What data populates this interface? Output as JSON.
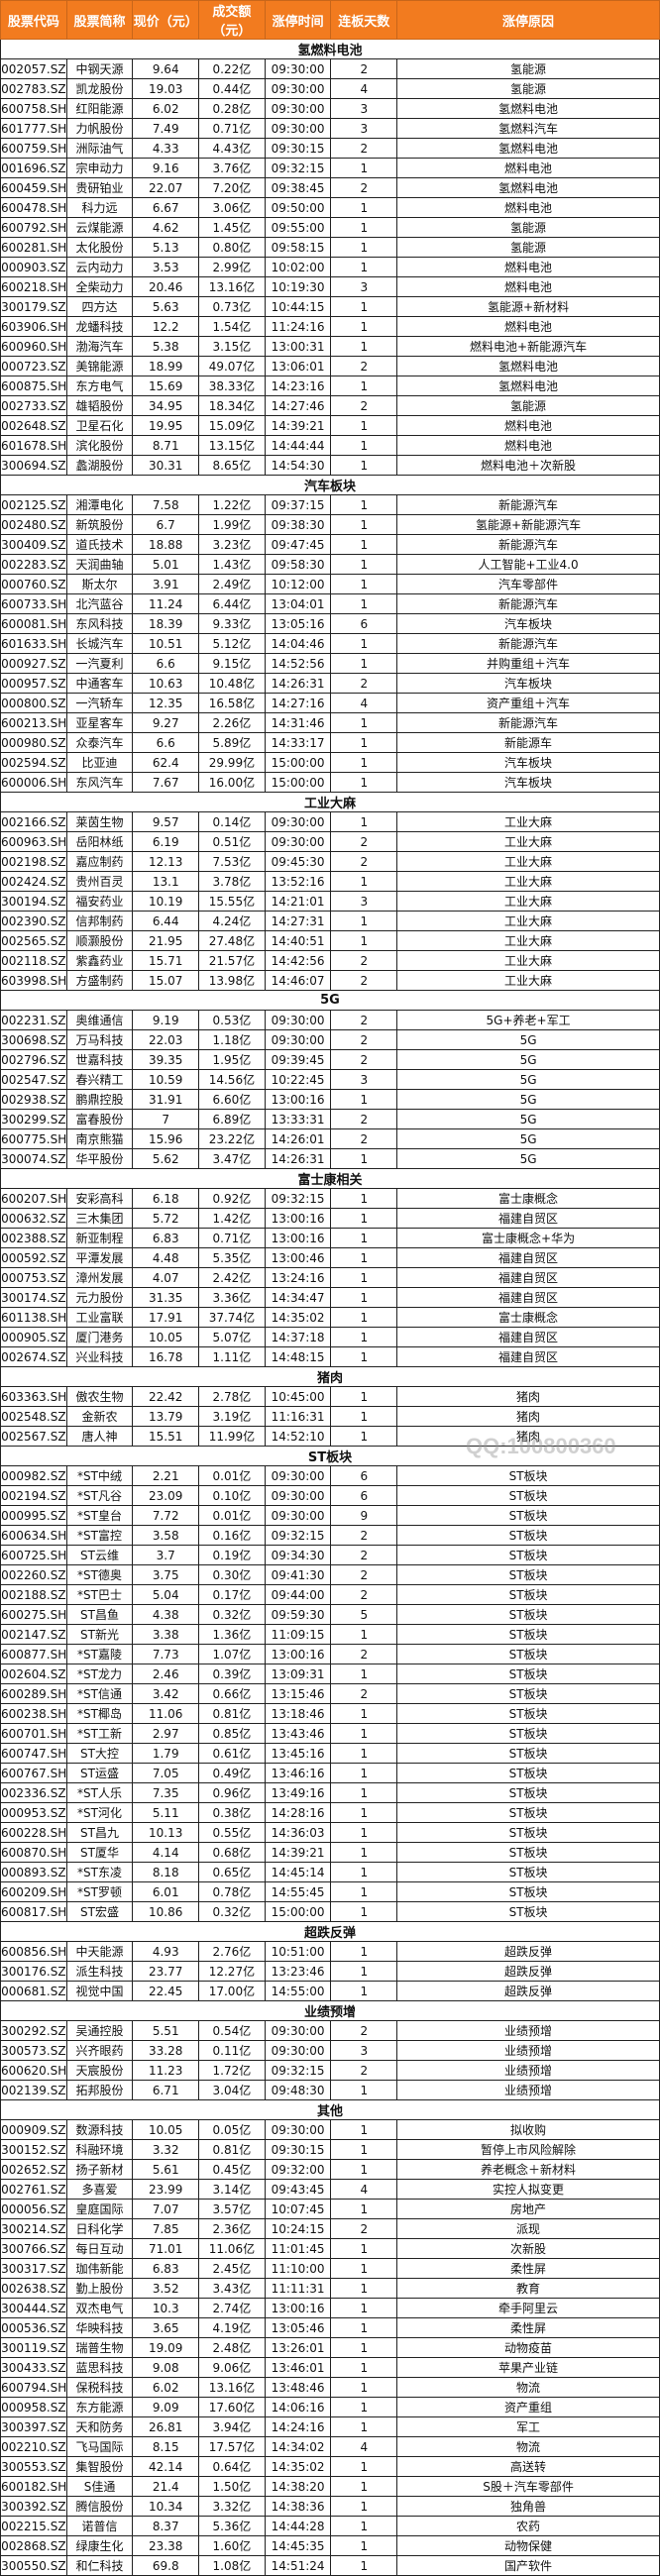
{
  "colors": {
    "header_bg": "#f27b1f",
    "header_text": "#ffffff"
  },
  "columns": [
    "股票代码",
    "股票简称",
    "现价（元）",
    "成交额（元）",
    "涨停时间",
    "连板天数",
    "涨停原因"
  ],
  "watermark": "QQ:100800360",
  "sections": [
    {
      "title": "氢燃料电池",
      "rows": [
        [
          "002057.SZ",
          "中钢天源",
          "9.64",
          "0.22亿",
          "09:30:00",
          "2",
          "氢能源"
        ],
        [
          "002783.SZ",
          "凯龙股份",
          "19.03",
          "0.44亿",
          "09:30:00",
          "4",
          "氢能源"
        ],
        [
          "600758.SH",
          "红阳能源",
          "6.02",
          "0.28亿",
          "09:30:00",
          "3",
          "氢燃料电池"
        ],
        [
          "601777.SH",
          "力帆股份",
          "7.49",
          "0.71亿",
          "09:30:00",
          "3",
          "氢燃料汽车"
        ],
        [
          "600759.SH",
          "洲际油气",
          "4.33",
          "4.43亿",
          "09:30:15",
          "2",
          "氢燃料电池"
        ],
        [
          "001696.SZ",
          "宗申动力",
          "9.16",
          "3.76亿",
          "09:32:15",
          "1",
          "燃料电池"
        ],
        [
          "600459.SH",
          "贵研铂业",
          "22.07",
          "7.20亿",
          "09:38:45",
          "2",
          "氢燃料电池"
        ],
        [
          "600478.SH",
          "科力远",
          "6.67",
          "3.06亿",
          "09:50:00",
          "1",
          "燃料电池"
        ],
        [
          "600792.SH",
          "云煤能源",
          "4.62",
          "1.45亿",
          "09:55:00",
          "1",
          "氢能源"
        ],
        [
          "600281.SH",
          "太化股份",
          "5.13",
          "0.80亿",
          "09:58:15",
          "1",
          "氢能源"
        ],
        [
          "000903.SZ",
          "云内动力",
          "3.53",
          "2.99亿",
          "10:02:00",
          "1",
          "燃料电池"
        ],
        [
          "600218.SH",
          "全柴动力",
          "20.46",
          "13.16亿",
          "10:19:30",
          "3",
          "燃料电池"
        ],
        [
          "300179.SZ",
          "四方达",
          "5.63",
          "0.73亿",
          "10:44:15",
          "1",
          "氢能源+新材料"
        ],
        [
          "603906.SH",
          "龙蟠科技",
          "12.2",
          "1.54亿",
          "11:24:16",
          "1",
          "燃料电池"
        ],
        [
          "600960.SH",
          "渤海汽车",
          "5.38",
          "3.15亿",
          "13:00:31",
          "1",
          "燃料电池+新能源汽车"
        ],
        [
          "000723.SZ",
          "美锦能源",
          "18.99",
          "49.07亿",
          "13:06:01",
          "2",
          "氢燃料电池"
        ],
        [
          "600875.SH",
          "东方电气",
          "15.69",
          "38.33亿",
          "14:23:16",
          "1",
          "氢燃料电池"
        ],
        [
          "002733.SZ",
          "雄韬股份",
          "34.95",
          "18.34亿",
          "14:27:46",
          "2",
          "氢能源"
        ],
        [
          "002648.SZ",
          "卫星石化",
          "19.95",
          "15.09亿",
          "14:39:21",
          "1",
          "燃料电池"
        ],
        [
          "601678.SH",
          "滨化股份",
          "8.71",
          "13.15亿",
          "14:44:44",
          "1",
          "燃料电池"
        ],
        [
          "300694.SZ",
          "蠡湖股份",
          "30.31",
          "8.65亿",
          "14:54:30",
          "1",
          "燃料电池＋次新股"
        ]
      ]
    },
    {
      "title": "汽车板块",
      "rows": [
        [
          "002125.SZ",
          "湘潭电化",
          "7.58",
          "1.22亿",
          "09:37:15",
          "1",
          "新能源汽车"
        ],
        [
          "002480.SZ",
          "新筑股份",
          "6.7",
          "1.99亿",
          "09:38:30",
          "1",
          "氢能源+新能源汽车"
        ],
        [
          "300409.SZ",
          "道氏技术",
          "18.88",
          "3.23亿",
          "09:47:45",
          "1",
          "新能源汽车"
        ],
        [
          "002283.SZ",
          "天润曲轴",
          "5.01",
          "1.43亿",
          "09:58:30",
          "1",
          "人工智能+工业4.0"
        ],
        [
          "000760.SZ",
          "斯太尔",
          "3.91",
          "2.49亿",
          "10:12:00",
          "1",
          "汽车零部件"
        ],
        [
          "600733.SH",
          "北汽蓝谷",
          "11.24",
          "6.44亿",
          "13:04:01",
          "1",
          "新能源汽车"
        ],
        [
          "600081.SH",
          "东风科技",
          "18.39",
          "9.33亿",
          "13:05:16",
          "6",
          "汽车板块"
        ],
        [
          "601633.SH",
          "长城汽车",
          "10.51",
          "5.12亿",
          "14:04:46",
          "1",
          "新能源汽车"
        ],
        [
          "000927.SZ",
          "一汽夏利",
          "6.6",
          "9.15亿",
          "14:52:56",
          "1",
          "并购重组＋汽车"
        ],
        [
          "000957.SZ",
          "中通客车",
          "10.63",
          "10.48亿",
          "14:26:31",
          "2",
          "汽车板块"
        ],
        [
          "000800.SZ",
          "一汽轿车",
          "12.35",
          "16.58亿",
          "14:27:16",
          "4",
          "资产重组＋汽车"
        ],
        [
          "600213.SH",
          "亚星客车",
          "9.27",
          "2.26亿",
          "14:31:46",
          "1",
          "新能源汽车"
        ],
        [
          "000980.SZ",
          "众泰汽车",
          "6.6",
          "5.89亿",
          "14:33:17",
          "1",
          "新能源车"
        ],
        [
          "002594.SZ",
          "比亚迪",
          "62.4",
          "29.99亿",
          "15:00:00",
          "1",
          "汽车板块"
        ],
        [
          "600006.SH",
          "东风汽车",
          "7.67",
          "16.00亿",
          "15:00:00",
          "1",
          "汽车板块"
        ]
      ]
    },
    {
      "title": "工业大麻",
      "rows": [
        [
          "002166.SZ",
          "莱茵生物",
          "9.57",
          "0.14亿",
          "09:30:00",
          "1",
          "工业大麻"
        ],
        [
          "600963.SH",
          "岳阳林纸",
          "6.19",
          "0.51亿",
          "09:30:00",
          "2",
          "工业大麻"
        ],
        [
          "002198.SZ",
          "嘉应制药",
          "12.13",
          "7.53亿",
          "09:45:30",
          "2",
          "工业大麻"
        ],
        [
          "002424.SZ",
          "贵州百灵",
          "13.1",
          "3.78亿",
          "13:52:16",
          "1",
          "工业大麻"
        ],
        [
          "300194.SZ",
          "福安药业",
          "10.19",
          "15.55亿",
          "14:21:01",
          "3",
          "工业大麻"
        ],
        [
          "002390.SZ",
          "信邦制药",
          "6.44",
          "4.24亿",
          "14:27:31",
          "1",
          "工业大麻"
        ],
        [
          "002565.SZ",
          "顺灏股份",
          "21.95",
          "27.48亿",
          "14:40:51",
          "1",
          "工业大麻"
        ],
        [
          "002118.SZ",
          "紫鑫药业",
          "15.71",
          "21.57亿",
          "14:42:56",
          "2",
          "工业大麻"
        ],
        [
          "603998.SH",
          "方盛制药",
          "15.07",
          "13.98亿",
          "14:46:07",
          "2",
          "工业大麻"
        ]
      ]
    },
    {
      "title": "5G",
      "rows": [
        [
          "002231.SZ",
          "奥维通信",
          "9.19",
          "0.53亿",
          "09:30:00",
          "2",
          "5G+养老+军工"
        ],
        [
          "300698.SZ",
          "万马科技",
          "22.03",
          "1.18亿",
          "09:30:00",
          "2",
          "5G"
        ],
        [
          "002796.SZ",
          "世嘉科技",
          "39.35",
          "1.95亿",
          "09:39:45",
          "2",
          "5G"
        ],
        [
          "002547.SZ",
          "春兴精工",
          "10.59",
          "14.56亿",
          "10:22:45",
          "3",
          "5G"
        ],
        [
          "002938.SZ",
          "鹏鼎控股",
          "31.91",
          "6.60亿",
          "13:00:16",
          "1",
          "5G"
        ],
        [
          "300299.SZ",
          "富春股份",
          "7",
          "6.89亿",
          "13:33:31",
          "2",
          "5G"
        ],
        [
          "600775.SH",
          "南京熊猫",
          "15.96",
          "23.22亿",
          "14:26:01",
          "2",
          "5G"
        ],
        [
          "300074.SZ",
          "华平股份",
          "5.62",
          "3.47亿",
          "14:26:31",
          "1",
          "5G"
        ]
      ]
    },
    {
      "title": "富士康相关",
      "rows": [
        [
          "600207.SH",
          "安彩高科",
          "6.18",
          "0.92亿",
          "09:32:15",
          "1",
          "富士康概念"
        ],
        [
          "000632.SZ",
          "三木集团",
          "5.72",
          "1.42亿",
          "13:00:16",
          "1",
          "福建自贸区"
        ],
        [
          "002388.SZ",
          "新亚制程",
          "6.83",
          "0.71亿",
          "13:00:16",
          "1",
          "富士康概念+华为"
        ],
        [
          "000592.SZ",
          "平潭发展",
          "4.48",
          "5.35亿",
          "13:00:46",
          "1",
          "福建自贸区"
        ],
        [
          "000753.SZ",
          "漳州发展",
          "4.07",
          "2.42亿",
          "13:24:16",
          "1",
          "福建自贸区"
        ],
        [
          "300174.SZ",
          "元力股份",
          "31.35",
          "3.36亿",
          "14:34:47",
          "1",
          "福建自贸区"
        ],
        [
          "601138.SH",
          "工业富联",
          "17.91",
          "37.74亿",
          "14:35:02",
          "1",
          "富士康概念"
        ],
        [
          "000905.SZ",
          "厦门港务",
          "10.05",
          "5.07亿",
          "14:37:18",
          "1",
          "福建自贸区"
        ],
        [
          "002674.SZ",
          "兴业科技",
          "16.78",
          "1.11亿",
          "14:48:15",
          "1",
          "福建自贸区"
        ]
      ]
    },
    {
      "title": "猪肉",
      "rows": [
        [
          "603363.SH",
          "傲农生物",
          "22.42",
          "2.78亿",
          "10:45:00",
          "1",
          "猪肉"
        ],
        [
          "002548.SZ",
          "金新农",
          "13.79",
          "3.19亿",
          "11:16:31",
          "1",
          "猪肉"
        ],
        [
          "002567.SZ",
          "唐人神",
          "15.51",
          "11.99亿",
          "14:52:10",
          "1",
          "猪肉"
        ]
      ]
    },
    {
      "title": "ST板块",
      "rows": [
        [
          "000982.SZ",
          "*ST中绒",
          "2.21",
          "0.01亿",
          "09:30:00",
          "6",
          "ST板块"
        ],
        [
          "002194.SZ",
          "*ST凡谷",
          "23.09",
          "0.10亿",
          "09:30:00",
          "6",
          "ST板块"
        ],
        [
          "000995.SZ",
          "*ST皇台",
          "7.72",
          "0.01亿",
          "09:30:00",
          "9",
          "ST板块"
        ],
        [
          "600634.SH",
          "*ST富控",
          "3.58",
          "0.16亿",
          "09:32:15",
          "2",
          "ST板块"
        ],
        [
          "600725.SH",
          "ST云维",
          "3.7",
          "0.19亿",
          "09:34:30",
          "2",
          "ST板块"
        ],
        [
          "002260.SZ",
          "*ST德奥",
          "3.75",
          "0.30亿",
          "09:41:30",
          "2",
          "ST板块"
        ],
        [
          "002188.SZ",
          "*ST巴士",
          "5.04",
          "0.17亿",
          "09:44:00",
          "2",
          "ST板块"
        ],
        [
          "600275.SH",
          "ST昌鱼",
          "4.38",
          "0.32亿",
          "09:59:30",
          "5",
          "ST板块"
        ],
        [
          "002147.SZ",
          "ST新光",
          "3.38",
          "1.36亿",
          "11:09:15",
          "1",
          "ST板块"
        ],
        [
          "600877.SH",
          "*ST嘉陵",
          "7.73",
          "1.07亿",
          "13:00:16",
          "2",
          "ST板块"
        ],
        [
          "002604.SZ",
          "*ST龙力",
          "2.46",
          "0.39亿",
          "13:09:31",
          "1",
          "ST板块"
        ],
        [
          "600289.SH",
          "*ST信通",
          "3.42",
          "0.66亿",
          "13:15:46",
          "2",
          "ST板块"
        ],
        [
          "600238.SH",
          "*ST椰岛",
          "11.06",
          "0.81亿",
          "13:18:46",
          "1",
          "ST板块"
        ],
        [
          "600701.SH",
          "*ST工新",
          "2.97",
          "0.85亿",
          "13:43:46",
          "1",
          "ST板块"
        ],
        [
          "600747.SH",
          "ST大控",
          "1.79",
          "0.61亿",
          "13:45:16",
          "1",
          "ST板块"
        ],
        [
          "600767.SH",
          "ST运盛",
          "7.05",
          "0.49亿",
          "13:46:16",
          "1",
          "ST板块"
        ],
        [
          "002336.SZ",
          "*ST人乐",
          "7.35",
          "0.96亿",
          "13:49:16",
          "1",
          "ST板块"
        ],
        [
          "000953.SZ",
          "*ST河化",
          "5.11",
          "0.38亿",
          "14:28:16",
          "1",
          "ST板块"
        ],
        [
          "600228.SH",
          "ST昌九",
          "10.13",
          "0.55亿",
          "14:36:03",
          "1",
          "ST板块"
        ],
        [
          "600870.SH",
          "ST厦华",
          "4.14",
          "0.68亿",
          "14:39:21",
          "1",
          "ST板块"
        ],
        [
          "000893.SZ",
          "*ST东凌",
          "8.18",
          "0.65亿",
          "14:45:14",
          "1",
          "ST板块"
        ],
        [
          "600209.SH",
          "*ST罗顿",
          "6.01",
          "0.78亿",
          "14:55:45",
          "1",
          "ST板块"
        ],
        [
          "600817.SH",
          "ST宏盛",
          "10.86",
          "0.32亿",
          "15:00:00",
          "1",
          "ST板块"
        ]
      ]
    },
    {
      "title": "超跌反弹",
      "rows": [
        [
          "600856.SH",
          "中天能源",
          "4.93",
          "2.76亿",
          "10:51:00",
          "1",
          "超跌反弹"
        ],
        [
          "300176.SZ",
          "派生科技",
          "23.77",
          "12.27亿",
          "13:23:46",
          "1",
          "超跌反弹"
        ],
        [
          "000681.SZ",
          "视觉中国",
          "22.45",
          "17.00亿",
          "14:55:00",
          "1",
          "超跌反弹"
        ]
      ]
    },
    {
      "title": "业绩预增",
      "rows": [
        [
          "300292.SZ",
          "吴通控股",
          "5.51",
          "0.54亿",
          "09:30:00",
          "2",
          "业绩预增"
        ],
        [
          "300573.SZ",
          "兴齐眼药",
          "33.28",
          "0.11亿",
          "09:30:00",
          "3",
          "业绩预增"
        ],
        [
          "600620.SH",
          "天宸股份",
          "11.23",
          "1.72亿",
          "09:32:15",
          "2",
          "业绩预增"
        ],
        [
          "002139.SZ",
          "拓邦股份",
          "6.71",
          "3.04亿",
          "09:48:30",
          "1",
          "业绩预增"
        ]
      ]
    },
    {
      "title": "其他",
      "rows": [
        [
          "000909.SZ",
          "数源科技",
          "10.05",
          "0.05亿",
          "09:30:00",
          "1",
          "拟收购"
        ],
        [
          "300152.SZ",
          "科融环境",
          "3.32",
          "0.81亿",
          "09:30:15",
          "1",
          "暂停上市风险解除"
        ],
        [
          "002652.SZ",
          "扬子新材",
          "5.61",
          "0.45亿",
          "09:32:00",
          "1",
          "养老概念＋新材料"
        ],
        [
          "002761.SZ",
          "多喜爱",
          "23.99",
          "3.14亿",
          "09:43:45",
          "4",
          "实控人拟变更"
        ],
        [
          "000056.SZ",
          "皇庭国际",
          "7.07",
          "3.57亿",
          "10:07:45",
          "1",
          "房地产"
        ],
        [
          "300214.SZ",
          "日科化学",
          "7.85",
          "2.36亿",
          "10:24:15",
          "2",
          "派现"
        ],
        [
          "300766.SZ",
          "每日互动",
          "71.01",
          "11.06亿",
          "11:01:45",
          "1",
          "次新股"
        ],
        [
          "300317.SZ",
          "珈伟新能",
          "6.83",
          "2.45亿",
          "11:10:00",
          "1",
          "柔性屏"
        ],
        [
          "002638.SZ",
          "勤上股份",
          "3.52",
          "3.43亿",
          "11:11:31",
          "1",
          "教育"
        ],
        [
          "300444.SZ",
          "双杰电气",
          "10.3",
          "2.74亿",
          "13:00:16",
          "1",
          "牵手阿里云"
        ],
        [
          "000536.SZ",
          "华映科技",
          "3.65",
          "4.19亿",
          "13:05:46",
          "1",
          "柔性屏"
        ],
        [
          "300119.SZ",
          "瑞普生物",
          "19.09",
          "2.48亿",
          "13:26:01",
          "1",
          "动物疫苗"
        ],
        [
          "300433.SZ",
          "蓝思科技",
          "9.08",
          "9.06亿",
          "13:46:01",
          "1",
          "苹果产业链"
        ],
        [
          "600794.SH",
          "保税科技",
          "6.02",
          "13.16亿",
          "13:48:46",
          "1",
          "物流"
        ],
        [
          "000958.SZ",
          "东方能源",
          "9.09",
          "17.60亿",
          "14:06:16",
          "1",
          "资产重组"
        ],
        [
          "300397.SZ",
          "天和防务",
          "26.81",
          "3.94亿",
          "14:24:16",
          "1",
          "军工"
        ],
        [
          "002210.SZ",
          "飞马国际",
          "8.15",
          "17.57亿",
          "14:34:02",
          "4",
          "物流"
        ],
        [
          "300553.SZ",
          "集智股份",
          "42.14",
          "0.64亿",
          "14:35:02",
          "1",
          "高送转"
        ],
        [
          "600182.SH",
          "S佳通",
          "21.4",
          "1.50亿",
          "14:38:20",
          "1",
          "S股＋汽车零部件"
        ],
        [
          "300392.SZ",
          "腾信股份",
          "10.34",
          "3.32亿",
          "14:38:36",
          "1",
          "独角兽"
        ],
        [
          "002215.SZ",
          "诺普信",
          "8.37",
          "5.36亿",
          "14:44:28",
          "1",
          "农药"
        ],
        [
          "002868.SZ",
          "绿康生化",
          "23.38",
          "1.60亿",
          "14:45:35",
          "1",
          "动物保健"
        ],
        [
          "300550.SZ",
          "和仁科技",
          "69.8",
          "1.08亿",
          "14:51:24",
          "1",
          "国产软件"
        ]
      ]
    }
  ]
}
